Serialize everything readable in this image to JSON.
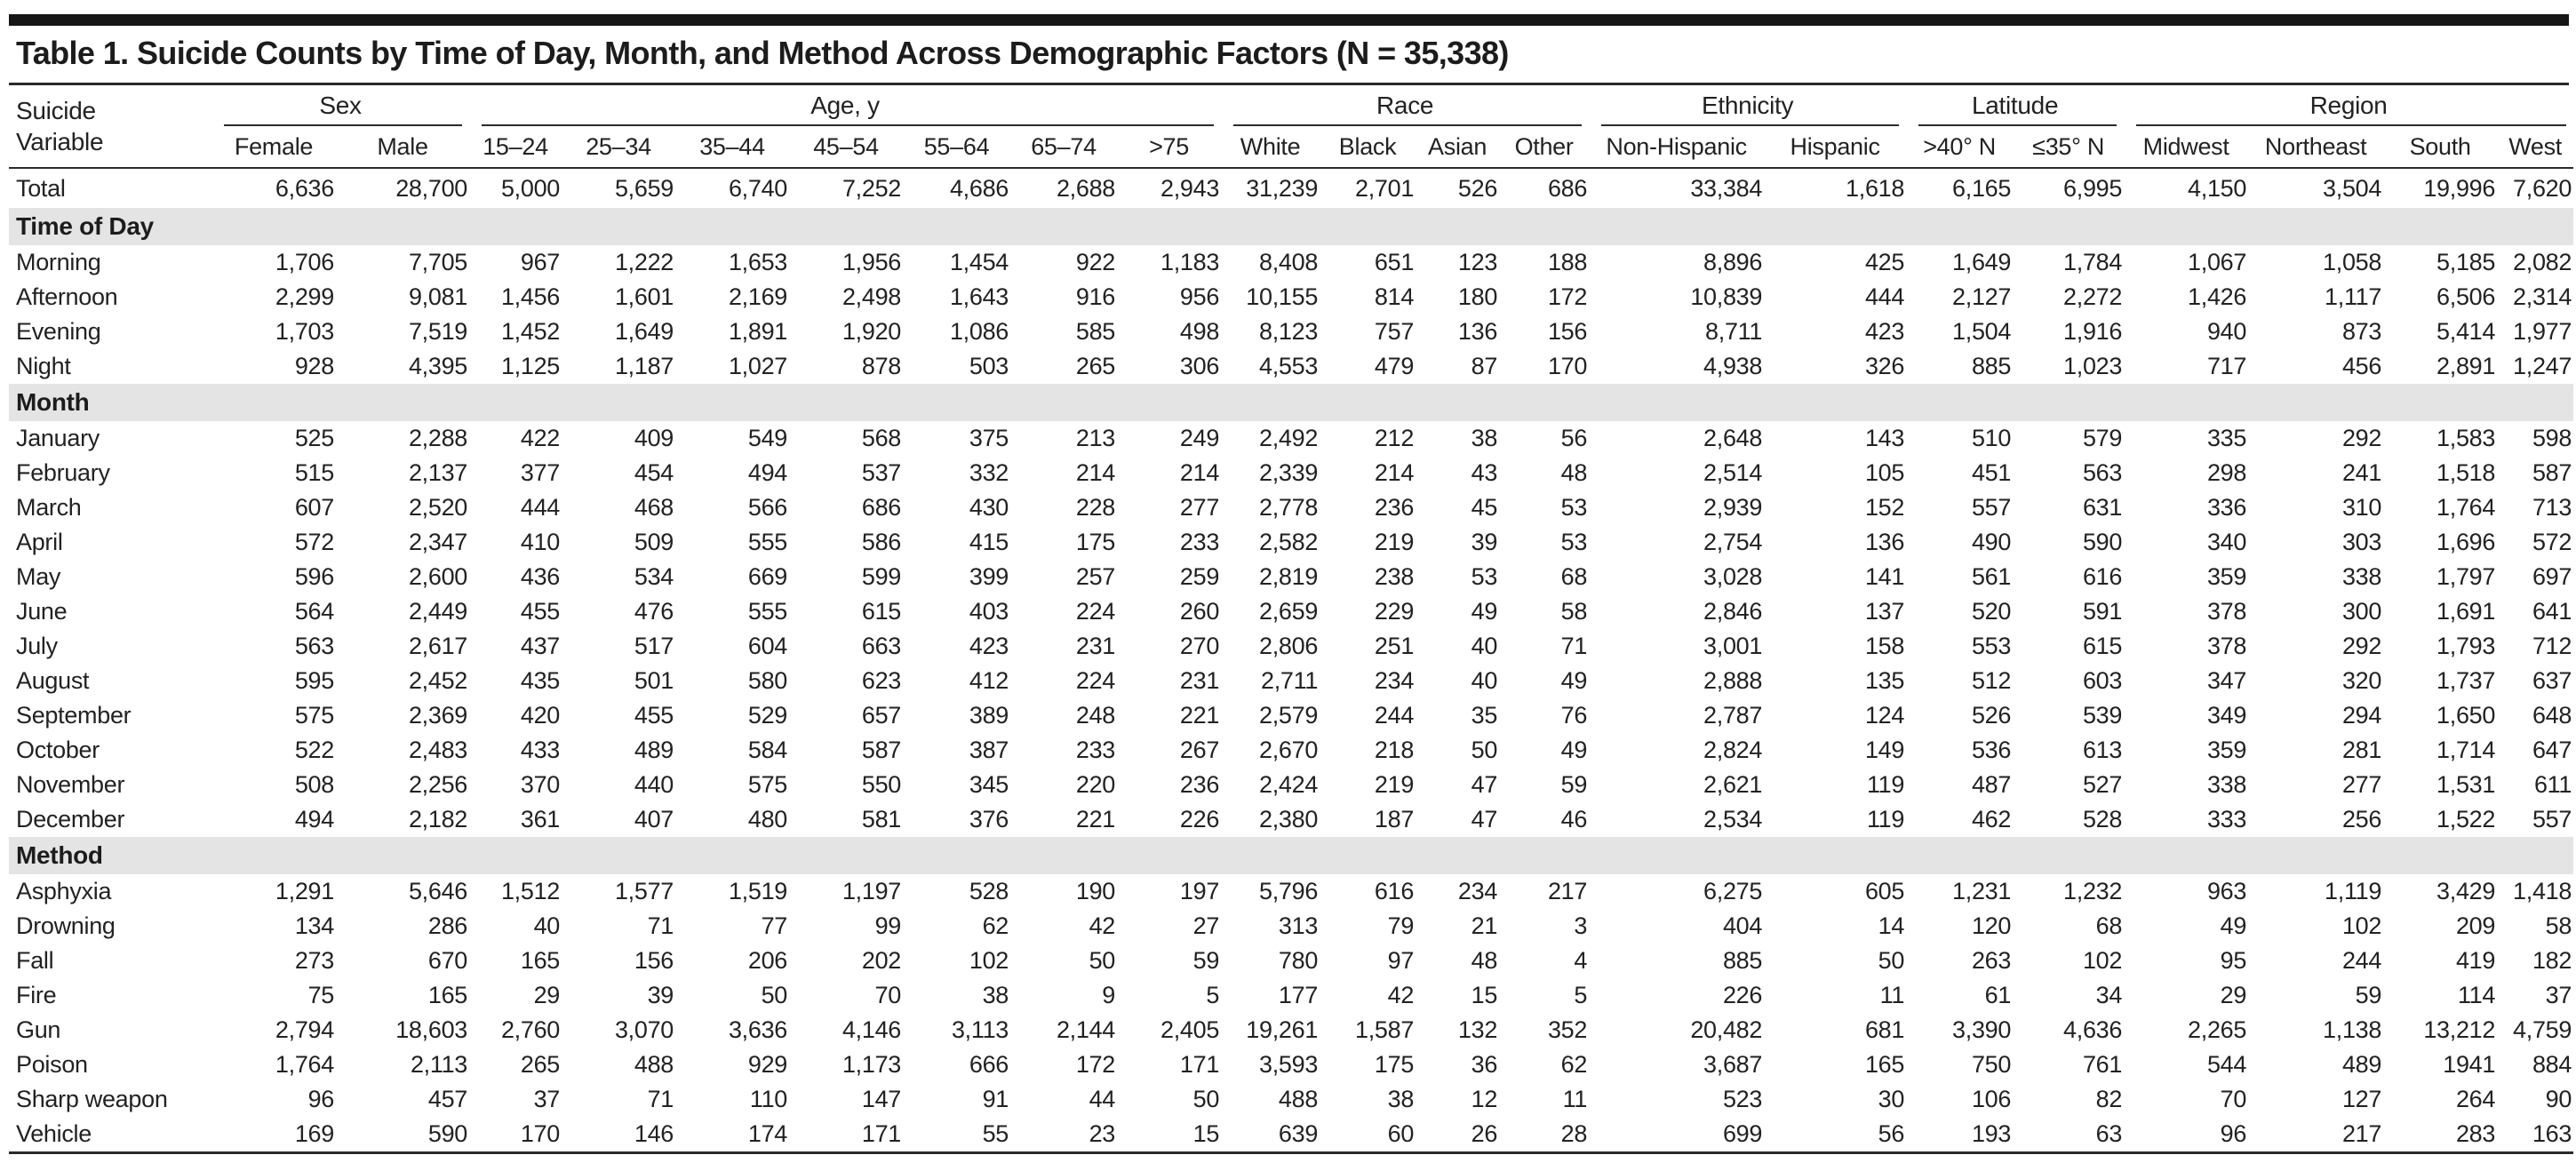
{
  "title": "Table 1. Suicide Counts by Time of Day, Month, and Method Across Demographic Factors (N = 35,338)",
  "header": {
    "stub_line1": "Suicide",
    "stub_line2": "Variable",
    "groups": [
      {
        "label": "Sex",
        "cols": [
          "Female",
          "Male"
        ]
      },
      {
        "label": "Age, y",
        "cols": [
          "15–24",
          "25–34",
          "35–44",
          "45–54",
          "55–64",
          "65–74",
          ">75"
        ]
      },
      {
        "label": "Race",
        "cols": [
          "White",
          "Black",
          "Asian",
          "Other"
        ]
      },
      {
        "label": "Ethnicity",
        "cols": [
          "Non-Hispanic",
          "Hispanic"
        ]
      },
      {
        "label": "Latitude",
        "cols": [
          ">40° N",
          "≤35° N"
        ]
      },
      {
        "label": "Region",
        "cols": [
          "Midwest",
          "Northeast",
          "South",
          "West"
        ]
      }
    ]
  },
  "rows": [
    {
      "type": "total",
      "label": "Total",
      "values": [
        "6,636",
        "28,700",
        "5,000",
        "5,659",
        "6,740",
        "7,252",
        "4,686",
        "2,688",
        "2,943",
        "31,239",
        "2,701",
        "526",
        "686",
        "33,384",
        "1,618",
        "6,165",
        "6,995",
        "4,150",
        "3,504",
        "19,996",
        "7,620"
      ]
    },
    {
      "type": "section",
      "label": "Time of Day"
    },
    {
      "type": "data",
      "label": "Morning",
      "values": [
        "1,706",
        "7,705",
        "967",
        "1,222",
        "1,653",
        "1,956",
        "1,454",
        "922",
        "1,183",
        "8,408",
        "651",
        "123",
        "188",
        "8,896",
        "425",
        "1,649",
        "1,784",
        "1,067",
        "1,058",
        "5,185",
        "2,082"
      ]
    },
    {
      "type": "data",
      "label": "Afternoon",
      "values": [
        "2,299",
        "9,081",
        "1,456",
        "1,601",
        "2,169",
        "2,498",
        "1,643",
        "916",
        "956",
        "10,155",
        "814",
        "180",
        "172",
        "10,839",
        "444",
        "2,127",
        "2,272",
        "1,426",
        "1,117",
        "6,506",
        "2,314"
      ]
    },
    {
      "type": "data",
      "label": "Evening",
      "values": [
        "1,703",
        "7,519",
        "1,452",
        "1,649",
        "1,891",
        "1,920",
        "1,086",
        "585",
        "498",
        "8,123",
        "757",
        "136",
        "156",
        "8,711",
        "423",
        "1,504",
        "1,916",
        "940",
        "873",
        "5,414",
        "1,977"
      ]
    },
    {
      "type": "data",
      "label": "Night",
      "values": [
        "928",
        "4,395",
        "1,125",
        "1,187",
        "1,027",
        "878",
        "503",
        "265",
        "306",
        "4,553",
        "479",
        "87",
        "170",
        "4,938",
        "326",
        "885",
        "1,023",
        "717",
        "456",
        "2,891",
        "1,247"
      ]
    },
    {
      "type": "section",
      "label": "Month"
    },
    {
      "type": "data",
      "label": "January",
      "values": [
        "525",
        "2,288",
        "422",
        "409",
        "549",
        "568",
        "375",
        "213",
        "249",
        "2,492",
        "212",
        "38",
        "56",
        "2,648",
        "143",
        "510",
        "579",
        "335",
        "292",
        "1,583",
        "598"
      ]
    },
    {
      "type": "data",
      "label": "February",
      "values": [
        "515",
        "2,137",
        "377",
        "454",
        "494",
        "537",
        "332",
        "214",
        "214",
        "2,339",
        "214",
        "43",
        "48",
        "2,514",
        "105",
        "451",
        "563",
        "298",
        "241",
        "1,518",
        "587"
      ]
    },
    {
      "type": "data",
      "label": "March",
      "values": [
        "607",
        "2,520",
        "444",
        "468",
        "566",
        "686",
        "430",
        "228",
        "277",
        "2,778",
        "236",
        "45",
        "53",
        "2,939",
        "152",
        "557",
        "631",
        "336",
        "310",
        "1,764",
        "713"
      ]
    },
    {
      "type": "data",
      "label": "April",
      "values": [
        "572",
        "2,347",
        "410",
        "509",
        "555",
        "586",
        "415",
        "175",
        "233",
        "2,582",
        "219",
        "39",
        "53",
        "2,754",
        "136",
        "490",
        "590",
        "340",
        "303",
        "1,696",
        "572"
      ]
    },
    {
      "type": "data",
      "label": "May",
      "values": [
        "596",
        "2,600",
        "436",
        "534",
        "669",
        "599",
        "399",
        "257",
        "259",
        "2,819",
        "238",
        "53",
        "68",
        "3,028",
        "141",
        "561",
        "616",
        "359",
        "338",
        "1,797",
        "697"
      ]
    },
    {
      "type": "data",
      "label": "June",
      "values": [
        "564",
        "2,449",
        "455",
        "476",
        "555",
        "615",
        "403",
        "224",
        "260",
        "2,659",
        "229",
        "49",
        "58",
        "2,846",
        "137",
        "520",
        "591",
        "378",
        "300",
        "1,691",
        "641"
      ]
    },
    {
      "type": "data",
      "label": "July",
      "values": [
        "563",
        "2,617",
        "437",
        "517",
        "604",
        "663",
        "423",
        "231",
        "270",
        "2,806",
        "251",
        "40",
        "71",
        "3,001",
        "158",
        "553",
        "615",
        "378",
        "292",
        "1,793",
        "712"
      ]
    },
    {
      "type": "data",
      "label": "August",
      "values": [
        "595",
        "2,452",
        "435",
        "501",
        "580",
        "623",
        "412",
        "224",
        "231",
        "2,711",
        "234",
        "40",
        "49",
        "2,888",
        "135",
        "512",
        "603",
        "347",
        "320",
        "1,737",
        "637"
      ]
    },
    {
      "type": "data",
      "label": "September",
      "values": [
        "575",
        "2,369",
        "420",
        "455",
        "529",
        "657",
        "389",
        "248",
        "221",
        "2,579",
        "244",
        "35",
        "76",
        "2,787",
        "124",
        "526",
        "539",
        "349",
        "294",
        "1,650",
        "648"
      ]
    },
    {
      "type": "data",
      "label": "October",
      "values": [
        "522",
        "2,483",
        "433",
        "489",
        "584",
        "587",
        "387",
        "233",
        "267",
        "2,670",
        "218",
        "50",
        "49",
        "2,824",
        "149",
        "536",
        "613",
        "359",
        "281",
        "1,714",
        "647"
      ]
    },
    {
      "type": "data",
      "label": "November",
      "values": [
        "508",
        "2,256",
        "370",
        "440",
        "575",
        "550",
        "345",
        "220",
        "236",
        "2,424",
        "219",
        "47",
        "59",
        "2,621",
        "119",
        "487",
        "527",
        "338",
        "277",
        "1,531",
        "611"
      ]
    },
    {
      "type": "data",
      "label": "December",
      "values": [
        "494",
        "2,182",
        "361",
        "407",
        "480",
        "581",
        "376",
        "221",
        "226",
        "2,380",
        "187",
        "47",
        "46",
        "2,534",
        "119",
        "462",
        "528",
        "333",
        "256",
        "1,522",
        "557"
      ]
    },
    {
      "type": "section",
      "label": "Method"
    },
    {
      "type": "data",
      "label": "Asphyxia",
      "values": [
        "1,291",
        "5,646",
        "1,512",
        "1,577",
        "1,519",
        "1,197",
        "528",
        "190",
        "197",
        "5,796",
        "616",
        "234",
        "217",
        "6,275",
        "605",
        "1,231",
        "1,232",
        "963",
        "1,119",
        "3,429",
        "1,418"
      ]
    },
    {
      "type": "data",
      "label": "Drowning",
      "values": [
        "134",
        "286",
        "40",
        "71",
        "77",
        "99",
        "62",
        "42",
        "27",
        "313",
        "79",
        "21",
        "3",
        "404",
        "14",
        "120",
        "68",
        "49",
        "102",
        "209",
        "58"
      ]
    },
    {
      "type": "data",
      "label": "Fall",
      "values": [
        "273",
        "670",
        "165",
        "156",
        "206",
        "202",
        "102",
        "50",
        "59",
        "780",
        "97",
        "48",
        "4",
        "885",
        "50",
        "263",
        "102",
        "95",
        "244",
        "419",
        "182"
      ]
    },
    {
      "type": "data",
      "label": "Fire",
      "values": [
        "75",
        "165",
        "29",
        "39",
        "50",
        "70",
        "38",
        "9",
        "5",
        "177",
        "42",
        "15",
        "5",
        "226",
        "11",
        "61",
        "34",
        "29",
        "59",
        "114",
        "37"
      ]
    },
    {
      "type": "data",
      "label": "Gun",
      "values": [
        "2,794",
        "18,603",
        "2,760",
        "3,070",
        "3,636",
        "4,146",
        "3,113",
        "2,144",
        "2,405",
        "19,261",
        "1,587",
        "132",
        "352",
        "20,482",
        "681",
        "3,390",
        "4,636",
        "2,265",
        "1,138",
        "13,212",
        "4,759"
      ]
    },
    {
      "type": "data",
      "label": "Poison",
      "values": [
        "1,764",
        "2,113",
        "265",
        "488",
        "929",
        "1,173",
        "666",
        "172",
        "171",
        "3,593",
        "175",
        "36",
        "62",
        "3,687",
        "165",
        "750",
        "761",
        "544",
        "489",
        "1941",
        "884"
      ]
    },
    {
      "type": "data",
      "label": "Sharp weapon",
      "values": [
        "96",
        "457",
        "37",
        "71",
        "110",
        "147",
        "91",
        "44",
        "50",
        "488",
        "38",
        "12",
        "11",
        "523",
        "30",
        "106",
        "82",
        "70",
        "127",
        "264",
        "90"
      ]
    },
    {
      "type": "data",
      "label": "Vehicle",
      "values": [
        "169",
        "590",
        "170",
        "146",
        "174",
        "171",
        "55",
        "23",
        "15",
        "639",
        "60",
        "26",
        "28",
        "699",
        "56",
        "193",
        "63",
        "96",
        "217",
        "283",
        "163"
      ]
    }
  ]
}
